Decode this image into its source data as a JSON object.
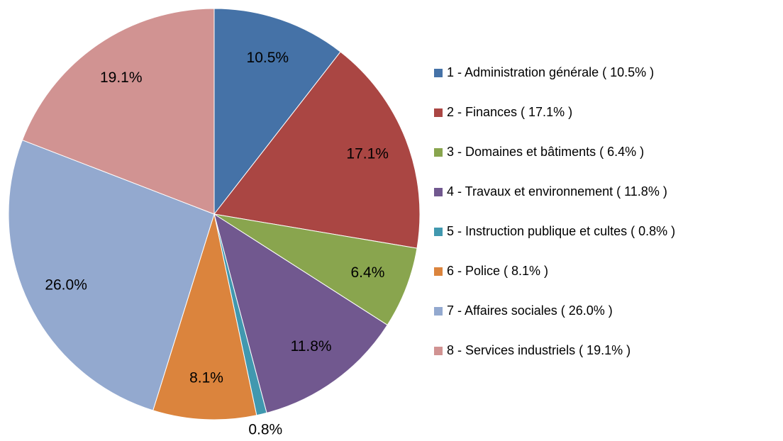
{
  "chart_data": {
    "type": "pie",
    "categories": [
      "1 - Administration générale ( 10.5% )",
      "2 - Finances ( 17.1% )",
      "3 - Domaines et bâtiments ( 6.4% )",
      "4 - Travaux et environnement ( 11.8% )",
      "5 - Instruction publique et cultes ( 0.8% )",
      "6 - Police ( 8.1% )",
      "7 - Affaires sociales ( 26.0% )",
      "8 - Services industriels ( 19.1% )"
    ],
    "values": [
      10.5,
      17.1,
      6.4,
      11.8,
      0.8,
      8.1,
      26.0,
      19.1
    ],
    "value_labels": [
      "10.5%",
      "17.1%",
      "6.4%",
      "11.8%",
      "0.8%",
      "8.1%",
      "26.0%",
      "19.1%"
    ],
    "colors": [
      "#4572a7",
      "#aa4643",
      "#89a54e",
      "#71588f",
      "#4198af",
      "#db843d",
      "#93a9cf",
      "#d19392"
    ],
    "legend": "right"
  }
}
